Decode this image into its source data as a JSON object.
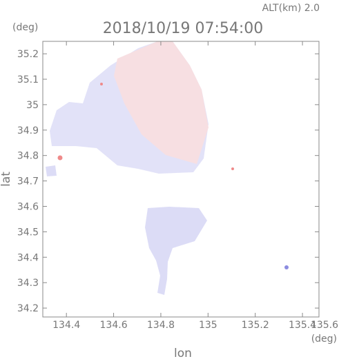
{
  "chart_data": {
    "type": "map",
    "title": "2018/10/19 07:54:00",
    "subtitle": "ALT(km) 2.0",
    "y_unit": "(deg)",
    "x_unit": "(deg)",
    "x_label": "lon",
    "y_label": "lat",
    "xlim": [
      134.3,
      135.47
    ],
    "ylim": [
      34.165,
      35.249
    ],
    "xticks": [
      134.4,
      134.6,
      134.8,
      135.0,
      135.2,
      135.4,
      135.6
    ],
    "yticks": [
      34.2,
      34.3,
      34.4,
      34.5,
      34.6,
      34.7,
      34.8,
      34.9,
      35.0,
      35.1,
      35.2
    ]
  }
}
